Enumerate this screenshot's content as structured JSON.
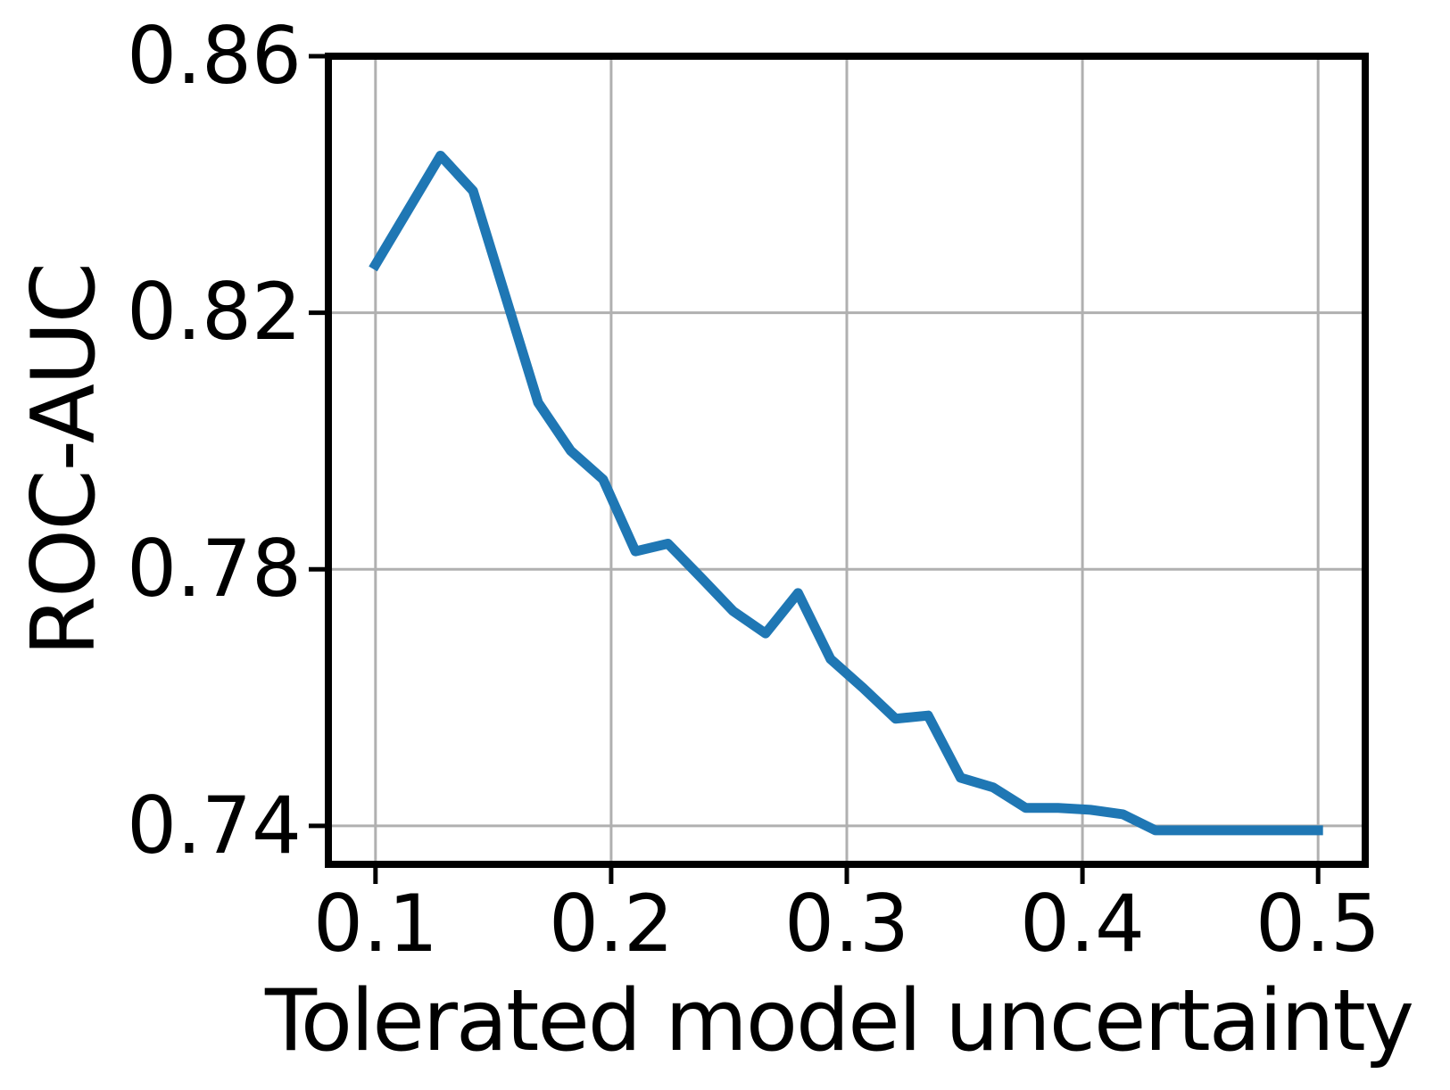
{
  "chart_data": {
    "type": "line",
    "title": "",
    "xlabel": "Tolerated model uncertainty",
    "ylabel": "ROC-AUC",
    "xlim": [
      0.08,
      0.52
    ],
    "ylim": [
      0.734,
      0.86
    ],
    "grid": true,
    "legend_position": "none",
    "line_color": "#1f77b4",
    "grid_color": "#b0b0b0",
    "frame_color": "#000000",
    "xticks": [
      0.1,
      0.2,
      0.3,
      0.4,
      0.5
    ],
    "xtick_labels": [
      "0.1",
      "0.2",
      "0.3",
      "0.4",
      "0.5"
    ],
    "yticks": [
      0.74,
      0.78,
      0.82,
      0.86
    ],
    "ytick_labels": [
      "0.74",
      "0.78",
      "0.82",
      "0.86"
    ],
    "series": [
      {
        "name": "ROC-AUC vs tolerated model uncertainty",
        "x": [
          0.1,
          0.1138,
          0.1276,
          0.1414,
          0.1552,
          0.169,
          0.1828,
          0.1966,
          0.2103,
          0.2241,
          0.2379,
          0.2517,
          0.2655,
          0.2793,
          0.2931,
          0.3069,
          0.3207,
          0.3345,
          0.3483,
          0.3621,
          0.3759,
          0.3897,
          0.4034,
          0.4172,
          0.431,
          0.4448,
          0.4586,
          0.4724,
          0.4862,
          0.5
        ],
        "y": [
          0.8275,
          0.836,
          0.8445,
          0.839,
          0.8225,
          0.806,
          0.7985,
          0.794,
          0.7828,
          0.784,
          0.7788,
          0.7735,
          0.77,
          0.7763,
          0.766,
          0.7615,
          0.7567,
          0.7572,
          0.7475,
          0.746,
          0.7428,
          0.7428,
          0.7425,
          0.7418,
          0.7393,
          0.7393,
          0.7393,
          0.7393,
          0.7393,
          0.7393
        ]
      }
    ]
  }
}
